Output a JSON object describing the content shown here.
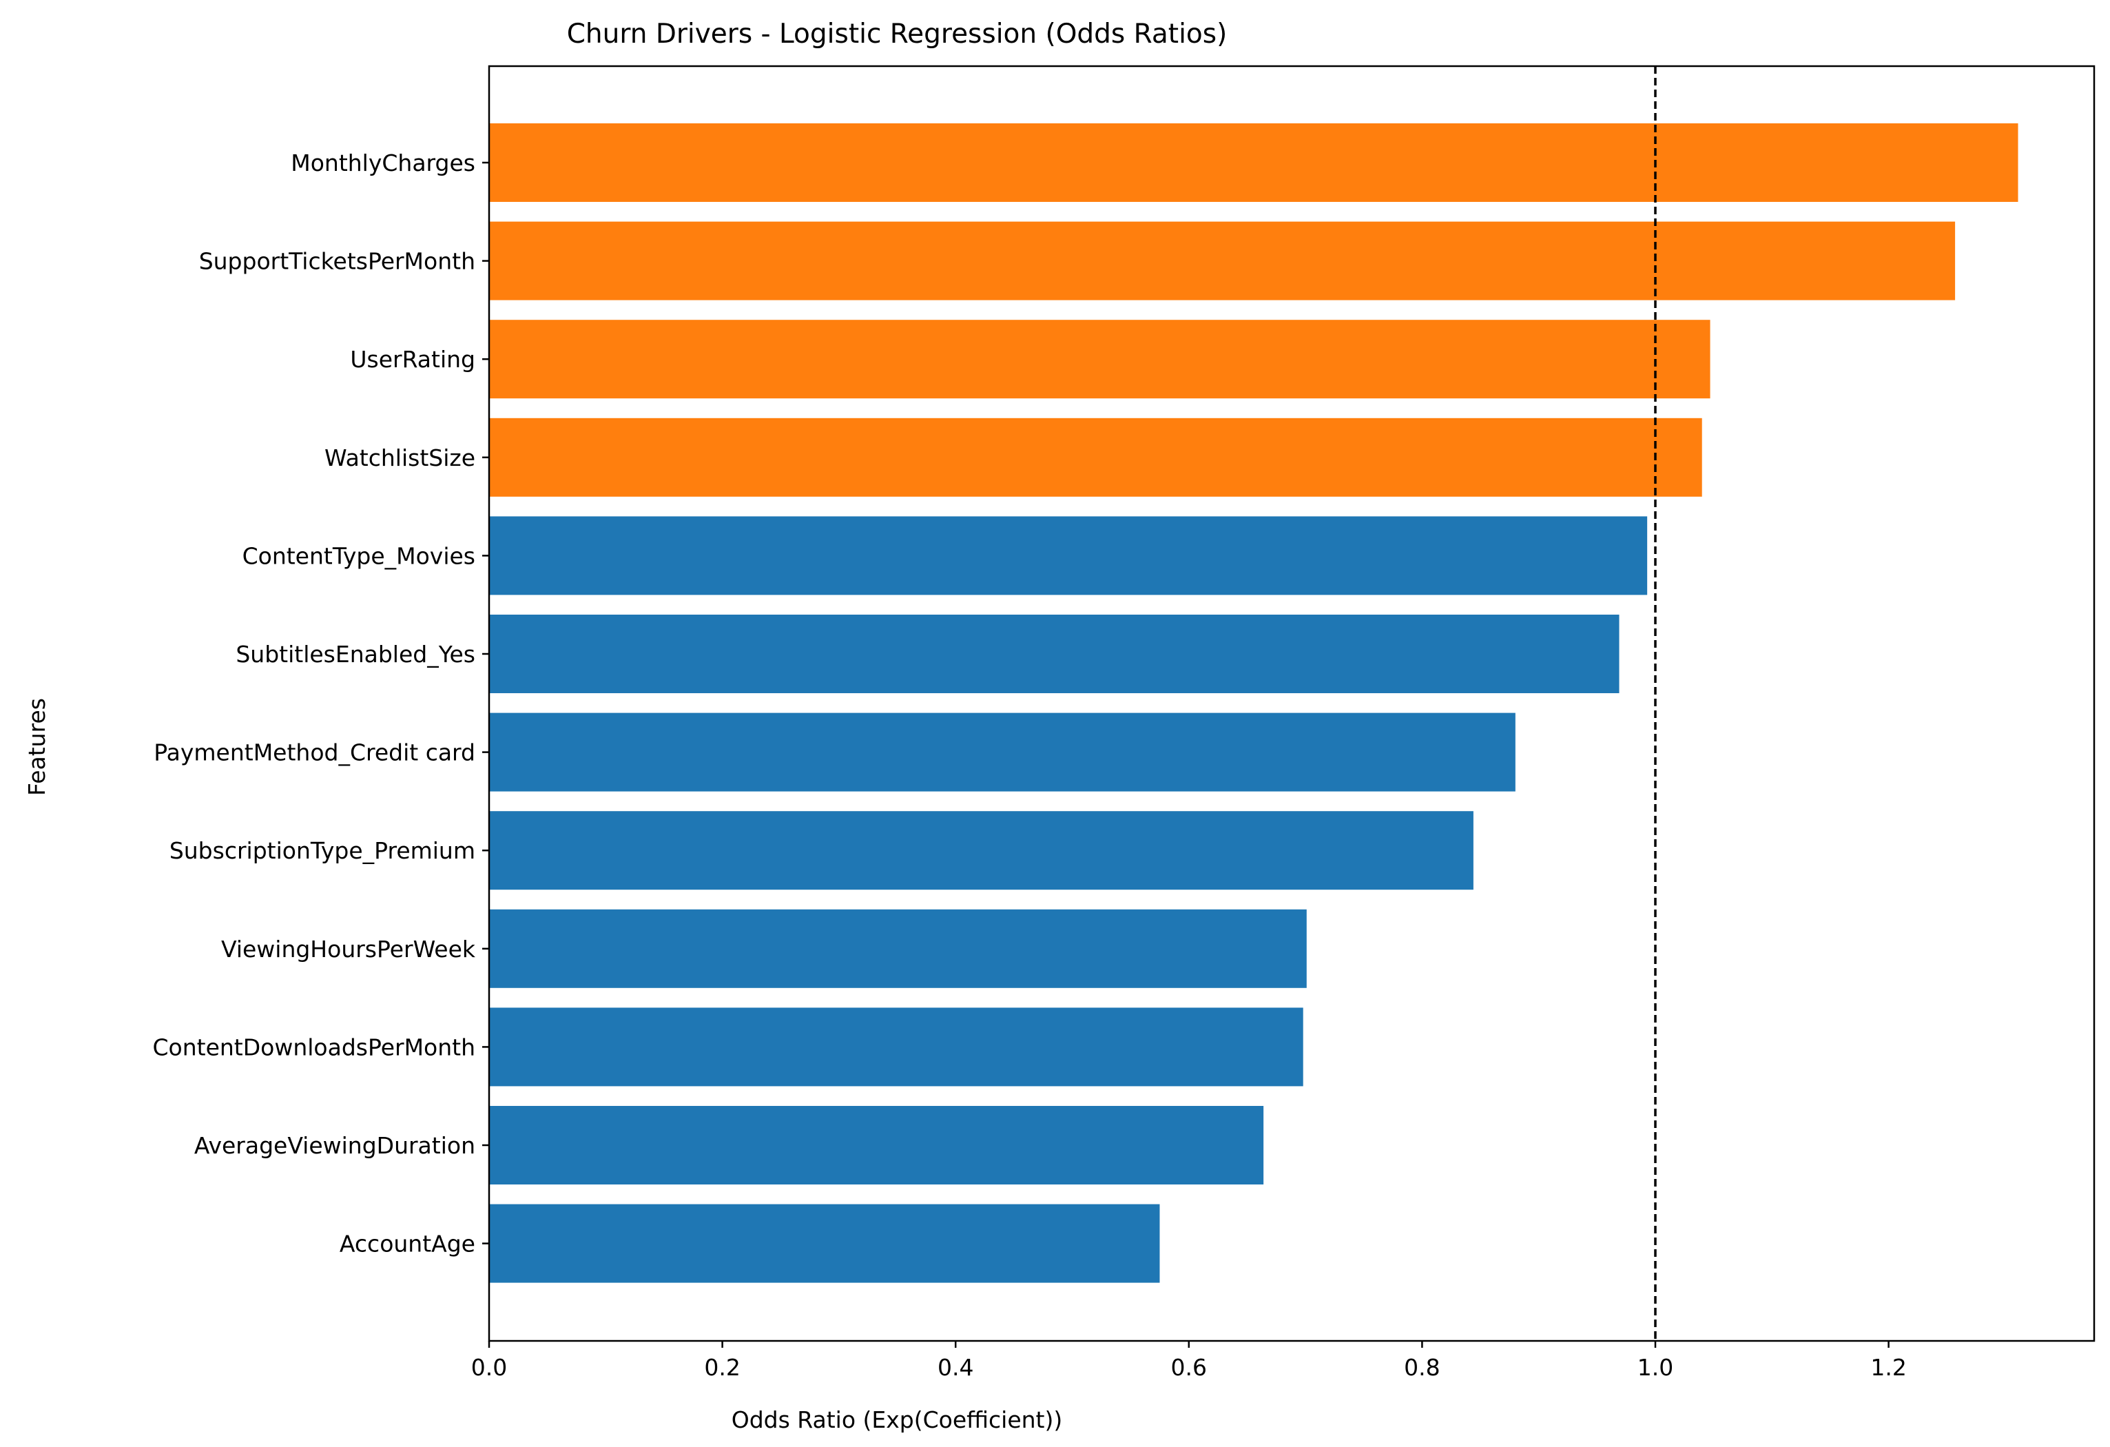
{
  "chart_data": {
    "type": "bar",
    "orientation": "horizontal",
    "title": "Churn Drivers - Logistic Regression (Odds Ratios)",
    "xlabel": "Odds Ratio (Exp(Coefficient))",
    "ylabel": "Features",
    "xlim": [
      0,
      1.377
    ],
    "xticks": [
      "0.0",
      "0.2",
      "0.4",
      "0.6",
      "0.8",
      "1.0",
      "1.2"
    ],
    "reference_line": {
      "x": 1.0,
      "style": "dashed",
      "color": "#000000"
    },
    "colors": {
      "above_one": "#ff7f0e",
      "below_one": "#1f77b4"
    },
    "grid": false,
    "categories": [
      "MonthlyCharges",
      "SupportTicketsPerMonth",
      "UserRating",
      "WatchlistSize",
      "ContentType_Movies",
      "SubtitlesEnabled_Yes",
      "PaymentMethod_Credit card",
      "SubscriptionType_Premium",
      "ViewingHoursPerWeek",
      "ContentDownloadsPerMonth",
      "AverageViewingDuration",
      "AccountAge"
    ],
    "values": [
      1.311,
      1.257,
      1.047,
      1.04,
      0.993,
      0.969,
      0.88,
      0.844,
      0.701,
      0.698,
      0.664,
      0.575
    ]
  }
}
